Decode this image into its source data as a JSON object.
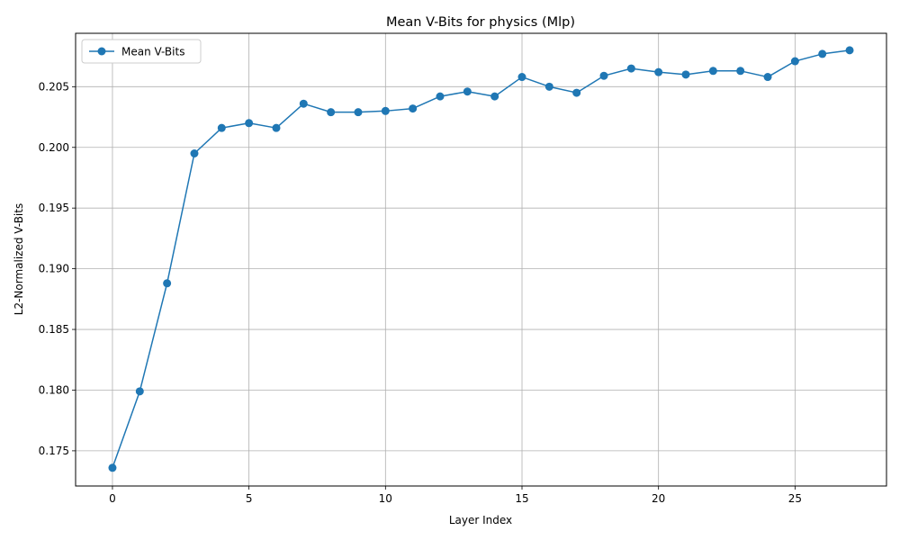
{
  "chart_data": {
    "type": "line",
    "title": "Mean V-Bits for physics (Mlp)",
    "xlabel": "Layer Index",
    "ylabel": "L2-Normalized V-Bits",
    "xlim": [
      -1.35,
      28.35
    ],
    "ylim": [
      0.1721,
      0.2094
    ],
    "xticks": [
      0,
      5,
      10,
      15,
      20,
      25
    ],
    "yticks": [
      0.175,
      0.18,
      0.185,
      0.19,
      0.195,
      0.2,
      0.205
    ],
    "ytick_labels": [
      "0.175",
      "0.180",
      "0.185",
      "0.190",
      "0.195",
      "0.200",
      "0.205"
    ],
    "grid": true,
    "legend_position": "top-left",
    "color": "#1f77b4",
    "series": [
      {
        "name": "Mean V-Bits",
        "marker": "circle",
        "x": [
          0,
          1,
          2,
          3,
          4,
          5,
          6,
          7,
          8,
          9,
          10,
          11,
          12,
          13,
          14,
          15,
          16,
          17,
          18,
          19,
          20,
          21,
          22,
          23,
          24,
          25,
          26,
          27
        ],
        "values": [
          0.1736,
          0.1799,
          0.1888,
          0.1995,
          0.2016,
          0.202,
          0.2016,
          0.2036,
          0.2029,
          0.2029,
          0.203,
          0.2032,
          0.2042,
          0.2046,
          0.2042,
          0.2058,
          0.205,
          0.2045,
          0.2059,
          0.2065,
          0.2062,
          0.206,
          0.2063,
          0.2063,
          0.2058,
          0.2071,
          0.2077,
          0.208
        ]
      }
    ]
  }
}
